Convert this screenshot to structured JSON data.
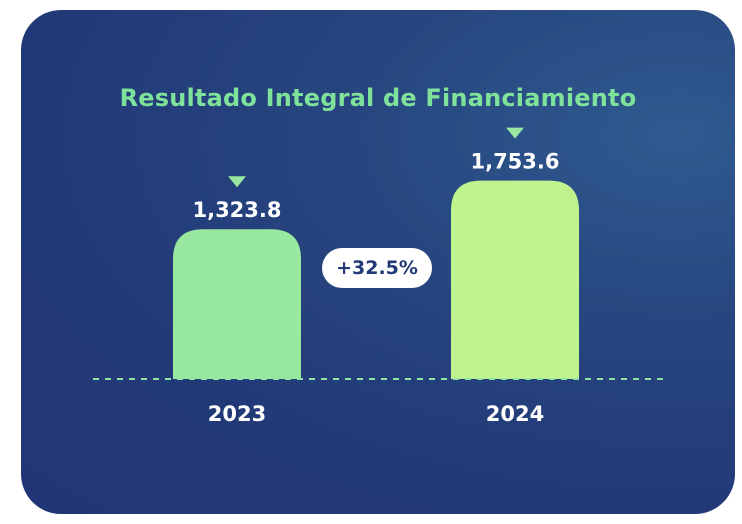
{
  "chart_data": {
    "type": "bar",
    "title": "Resultado Integral de Financiamiento",
    "categories": [
      "2023",
      "2024"
    ],
    "values": [
      1323.8,
      1753.6
    ],
    "value_labels": [
      "1,323.8",
      "1,753.6"
    ],
    "change_label": "+32.5%",
    "xlabel": "",
    "ylabel": "",
    "ylim": [
      0,
      1900
    ],
    "grid": false,
    "legend": "none",
    "colors": {
      "bar_2023": "#98e89f",
      "bar_2024": "#bff38d",
      "marker": "#98e89f",
      "baseline": "#8fe3a5",
      "title": "#7ee29a",
      "background": "#223978"
    }
  }
}
